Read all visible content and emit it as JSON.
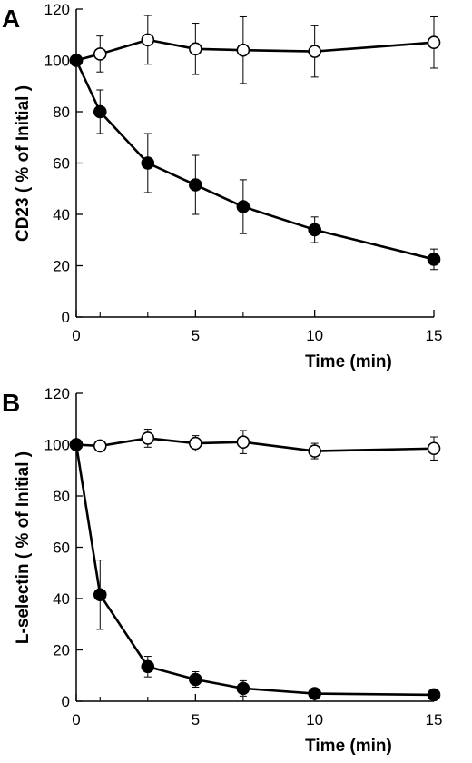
{
  "chart_data": [
    {
      "panel_label": "A",
      "type": "line",
      "xlabel": "Time (min)",
      "ylabel": "CD23 ( % of Initial )",
      "xlim": [
        0,
        15
      ],
      "ylim": [
        0,
        120
      ],
      "x_ticks": [
        "0",
        "5",
        "10",
        "15"
      ],
      "y_ticks": [
        "0",
        "20",
        "40",
        "60",
        "80",
        "100",
        "120"
      ],
      "minor_x_ticks": [
        1,
        3,
        7
      ],
      "x": [
        0,
        1,
        3,
        5,
        7,
        10,
        15
      ],
      "series": [
        {
          "marker": "open-circle",
          "values": [
            100,
            102.5,
            108,
            104.5,
            104,
            103.5,
            107
          ],
          "errors": [
            0,
            7,
            9.5,
            10,
            13,
            10,
            10
          ]
        },
        {
          "marker": "filled-circle",
          "values": [
            100,
            80,
            60,
            51.5,
            43,
            34,
            22.5
          ],
          "errors": [
            0,
            8.5,
            11.5,
            11.5,
            10.5,
            5,
            4
          ]
        }
      ],
      "grid": false
    },
    {
      "panel_label": "B",
      "type": "line",
      "xlabel": "Time (min)",
      "ylabel": "L-selectin ( % of Initial )",
      "xlim": [
        0,
        15
      ],
      "ylim": [
        0,
        120
      ],
      "x_ticks": [
        "0",
        "5",
        "10",
        "15"
      ],
      "y_ticks": [
        "0",
        "20",
        "40",
        "60",
        "80",
        "100",
        "120"
      ],
      "minor_x_ticks": [
        1,
        3,
        7
      ],
      "x": [
        0,
        1,
        3,
        5,
        7,
        10,
        15
      ],
      "series": [
        {
          "marker": "open-circle",
          "values": [
            100,
            99.5,
            102.5,
            100.5,
            101,
            97.5,
            98.5
          ],
          "errors": [
            0,
            0,
            3.5,
            3,
            4.5,
            3,
            4.5
          ]
        },
        {
          "marker": "filled-circle",
          "values": [
            100,
            41.5,
            13.5,
            8.5,
            5,
            3,
            2.5
          ],
          "errors": [
            0,
            13.5,
            4,
            3,
            3,
            1.5,
            1
          ]
        }
      ],
      "grid": false
    }
  ]
}
